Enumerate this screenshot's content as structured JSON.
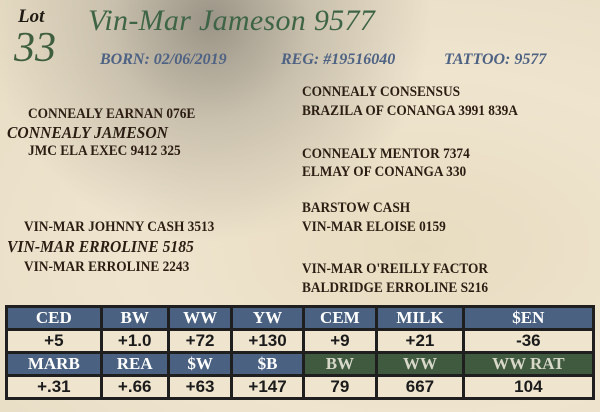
{
  "lot": {
    "label": "Lot",
    "number": "33"
  },
  "animal": {
    "name": "Vin-Mar Jameson 9577",
    "born": "BORN: 02/06/2019",
    "reg": "REG: #19516040",
    "tattoo": "TATTOO: 9577"
  },
  "pedigree": {
    "sire": "CONNEALY JAMESON",
    "sire_sire": "CONNEALY EARNAN 076E",
    "sire_dam": "JMC ELA EXEC 9412 325",
    "sss": "CONNEALY CONSENSUS",
    "ssd": "BRAZILA OF CONANGA 3991 839A",
    "sds": "CONNEALY MENTOR 7374",
    "sdd": "ELMAY OF CONANGA 330",
    "dam": "VIN-MAR ERROLINE 5185",
    "dam_sire": "VIN-MAR JOHNNY CASH 3513",
    "dam_dam": "VIN-MAR ERROLINE 2243",
    "dss": "BARSTOW CASH",
    "dsd": "VIN-MAR ELOISE 0159",
    "dds": "VIN-MAR O'REILLY FACTOR",
    "ddd": "BALDRIDGE ERROLINE S216"
  },
  "epd": {
    "row1_headers": [
      "CED",
      "BW",
      "WW",
      "YW",
      "CEM",
      "MILK",
      "$EN"
    ],
    "row1_values": [
      "+5",
      "+1.0",
      "+72",
      "+130",
      "+9",
      "+21",
      "-36"
    ],
    "row2_headers": [
      "MARB",
      "REA",
      "$W",
      "$B",
      "BW",
      "WW",
      "WW RAT"
    ],
    "row2_values": [
      "+.31",
      "+.66",
      "+63",
      "+147",
      "79",
      "667",
      "104"
    ]
  },
  "colors": {
    "header_blue": "#4a6182",
    "header_green": "#405a40",
    "name_green": "#3e6446",
    "info_blue": "#4e6284"
  }
}
